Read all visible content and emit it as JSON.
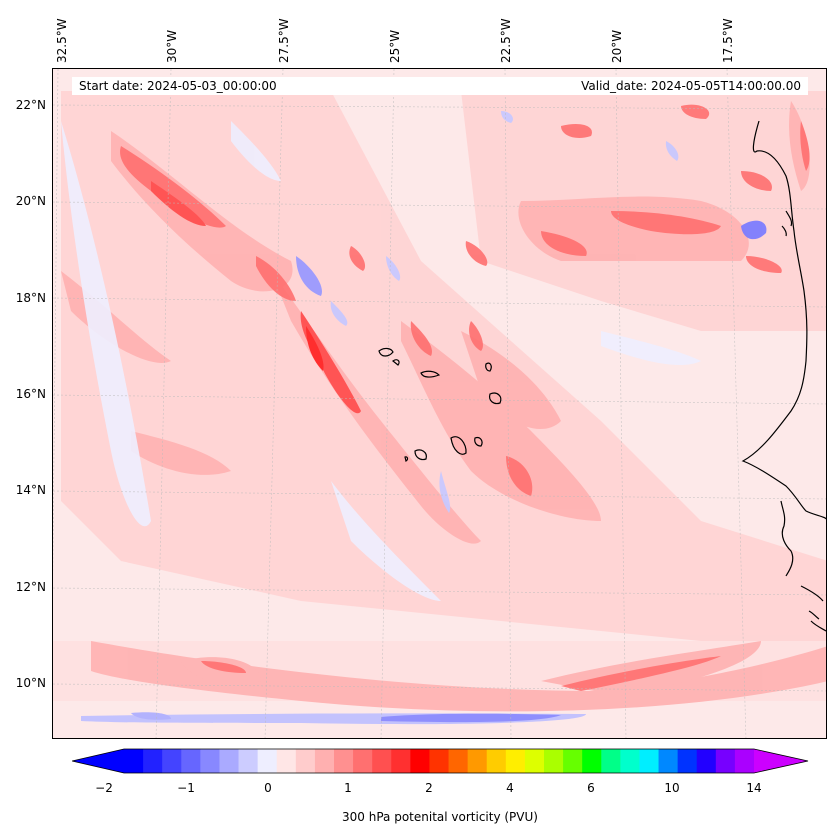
{
  "header": {
    "start_date": "Start date: 2024-05-03_00:00:00",
    "valid_date": "Valid_date: 2024-05-05T14:00:00.00"
  },
  "axes": {
    "longitude_labels": [
      "32.5°W",
      "30°W",
      "27.5°W",
      "25°W",
      "22.5°W",
      "20°W",
      "17.5°W"
    ],
    "latitude_labels": [
      "22°N",
      "20°N",
      "18°N",
      "16°N",
      "14°N",
      "12°N",
      "10°N"
    ]
  },
  "colorbar": {
    "title": "300 hPa potenital vorticity (PVU)",
    "tick_labels": [
      "−2",
      "−1",
      "0",
      "1",
      "2",
      "4",
      "6",
      "10",
      "14"
    ],
    "colors": [
      "#0000ff",
      "#2222ff",
      "#4444ff",
      "#6666ff",
      "#8888ff",
      "#aaaaff",
      "#ccccff",
      "#eeeeff",
      "#ffe6e6",
      "#ffcccc",
      "#ffb0b0",
      "#ff9090",
      "#ff7070",
      "#ff5050",
      "#ff3030",
      "#ff0000",
      "#ff3300",
      "#ff6600",
      "#ff9900",
      "#ffcc00",
      "#ffee00",
      "#ddff00",
      "#aaff00",
      "#66ff00",
      "#00ff00",
      "#00ff88",
      "#00ffcc",
      "#00eeff",
      "#0088ff",
      "#0033ff",
      "#2200ff",
      "#7700ff",
      "#aa00ff"
    ],
    "extend_low_color": "#0000ff",
    "extend_high_color": "#cc00ff"
  },
  "map_data": {
    "background_color": "#fde9e9",
    "coastline_color": "#000000"
  }
}
